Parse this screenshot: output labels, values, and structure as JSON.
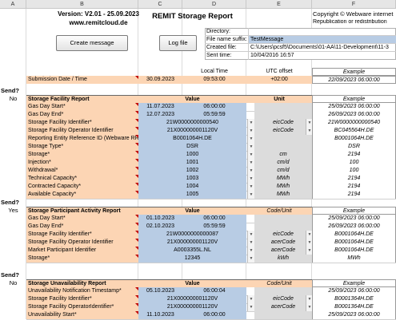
{
  "columns": [
    "A",
    "B",
    "C",
    "D",
    "E",
    "F"
  ],
  "header": {
    "version": "Version: V2.01 - 25.09.2023",
    "site": "www.remitcloud.de",
    "title": "REMIT Storage Report",
    "copyright_line1": "Copyright © Webware internet",
    "copyright_line2": "Republication or redistribution"
  },
  "buttons": {
    "create": "Create message",
    "log": "Log file"
  },
  "meta": {
    "directory_label": "Directory:",
    "directory_value": "",
    "suffix_label": "File name suffix:",
    "suffix_value": "TestMessage",
    "created_label": "Created file:",
    "created_value": "C:\\Users\\pcsf5\\Documents\\01-AA\\11-Development\\11-3",
    "sent_label": "Sent time:",
    "sent_value": "10/04/2016 16:57"
  },
  "time_header": {
    "local": "Local Time",
    "utc": "UTC offset",
    "example": "Example"
  },
  "submission": {
    "label": "Submission Date / Time",
    "date": "30.09.2023",
    "time": "09:53:00",
    "offset": "+02:00",
    "example": "22/09/2023 06:00:00"
  },
  "facility": {
    "send_label": "Send?",
    "send_value": "No",
    "title": "Storage Facility Report",
    "value_header": "Value",
    "unit_header": "Unit",
    "example_header": "Example",
    "rows": [
      {
        "label": "Gas Day Start*",
        "date": "11.07.2023",
        "time": "06:00:00",
        "unit": "",
        "example": "25/09/2023 06:00:00"
      },
      {
        "label": "Gas Day End*",
        "date": "12.07.2023",
        "time": "05:59:59",
        "unit": "",
        "example": "26/09/2023 06:00:00"
      },
      {
        "label": "Storage Facility Identifier*",
        "value": "21W0000000000540",
        "unit": "eicCode",
        "example": "21W0000000000540"
      },
      {
        "label": "Storage Facility Operator Identifier",
        "value": "21X000000001120V",
        "unit": "eicCode",
        "example": "BC045564H.DE"
      },
      {
        "label": "Reporting Entity Reference ID (Webware RRM)",
        "value": "B0001064H.DE",
        "unit": "",
        "example": "B0001064H.DE"
      },
      {
        "label": "Storage Type*",
        "value": "DSR",
        "unit": "",
        "example": "DSR"
      },
      {
        "label": "Storage*",
        "value": "1000",
        "unit": "cm",
        "example": "2194"
      },
      {
        "label": "Injection*",
        "value": "1001",
        "unit": "cm/d",
        "example": "100"
      },
      {
        "label": "Withdrawal*",
        "value": "1002",
        "unit": "cm/d",
        "example": "100"
      },
      {
        "label": "Technical Capacity*",
        "value": "1003",
        "unit": "MWh",
        "example": "2194"
      },
      {
        "label": "Contracted Capacity*",
        "value": "1004",
        "unit": "MWh",
        "example": "2194"
      },
      {
        "label": "Available Capacity*",
        "value": "1005",
        "unit": "MWh",
        "example": "2194"
      }
    ]
  },
  "participant": {
    "send_label": "Send?",
    "send_value": "Yes",
    "title": "Storage Participant Activity Report",
    "value_header": "Value",
    "unit_header": "Code/Unit",
    "example_header": "Example",
    "rows": [
      {
        "label": "Gas Day Start*",
        "date": "01.10.2023",
        "time": "06:00:00",
        "unit": "",
        "example": "25/09/2023 06:00:00"
      },
      {
        "label": "Gas Day End*",
        "date": "02.10.2023",
        "time": "05:59:59",
        "unit": "",
        "example": "26/09/2023 06:00:00"
      },
      {
        "label": "Storage Facility Identifier*",
        "value": "21W0000000000087",
        "unit": "eicCode",
        "example": "B0001064H.DE"
      },
      {
        "label": "Storage Facility Operator Identifier",
        "value": "21X000000001120V",
        "unit": "acerCode",
        "example": "B0001064H.DE"
      },
      {
        "label": "Market Participant Identifier",
        "value": "A0003355L.NL",
        "unit": "acerCode",
        "example": "B0001064H.DE"
      },
      {
        "label": "Storage*",
        "value": "12345",
        "unit": "kWh",
        "example": "MWh"
      }
    ]
  },
  "unavailability": {
    "send_label": "Send?",
    "send_value": "No",
    "title": "Storage Unavailability Report",
    "value_header": "Value",
    "unit_header": "Code/Unit",
    "example_header": "Example",
    "rows": [
      {
        "label": "Unavailability Notification Timestamp*",
        "date": "05.10.2023",
        "time": "06:00:04",
        "unit": "",
        "example": "25/09/2023 06:00:00"
      },
      {
        "label": "Storage Facility Identifier*",
        "value": "21X000000001120V",
        "unit": "eicCode",
        "example": "B0001364H.DE"
      },
      {
        "label": "Storage Facility OperatorIdentifier*",
        "value": "21X000000001120V",
        "unit": "acerCode",
        "example": "B0001364H.DE"
      },
      {
        "label": "Unavailability Start*",
        "date": "11.10.2023",
        "time": "06:00:00",
        "unit": "",
        "example": "25/09/2023 06:00:00"
      }
    ]
  }
}
